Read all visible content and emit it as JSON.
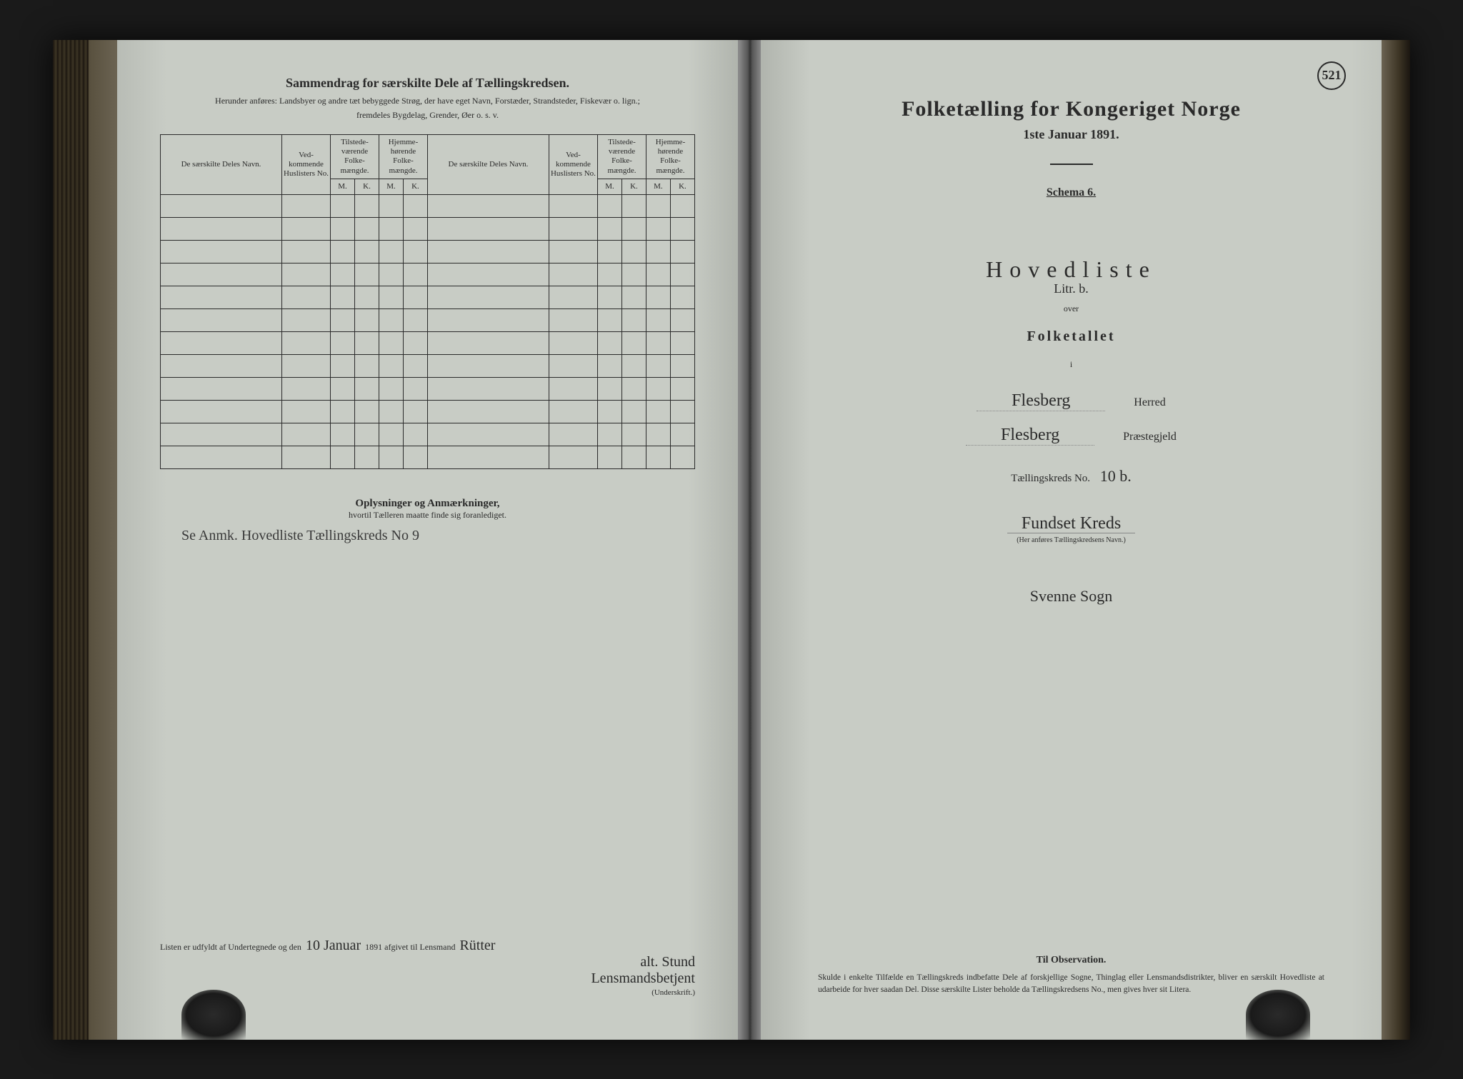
{
  "page_number": "521",
  "left": {
    "title": "Sammendrag for særskilte Dele af Tællingskredsen.",
    "subtitle1": "Herunder anføres: Landsbyer og andre tæt bebyggede Strøg, der have eget Navn, Forstæder, Strandsteder, Fiskevær o. lign.;",
    "subtitle2": "fremdeles Bygdelag, Grender, Øer o. s. v.",
    "headers": {
      "name": "De særskilte Deles Navn.",
      "no": "Ved-kommende Huslisters No.",
      "tilstede": "Tilstede-værende Folke-mængde.",
      "hjemme": "Hjemme-hørende Folke-mængde.",
      "m": "M.",
      "k": "K."
    },
    "row_count": 12,
    "oplys_title": "Oplysninger og Anmærkninger,",
    "oplys_sub": "hvortil Tælleren maatte finde sig foranlediget.",
    "oplys_note": "Se Anmk. Hovedliste Tællingskreds No 9",
    "sign_prefix": "Listen er udfyldt af Undertegnede og den",
    "sign_date": "10 Januar",
    "sign_year": "1891 afgivet til Lensmand",
    "sign_name": "Rütter",
    "sign_name2": "alt. Stund",
    "sign_role": "Lensmandsbetjent",
    "sign_under": "(Underskrift.)"
  },
  "right": {
    "title": "Folketælling for Kongeriget Norge",
    "subtitle": "1ste Januar 1891.",
    "schema": "Schema 6.",
    "hoved": "Hovedliste",
    "hoved_hand": "Litr. b.",
    "over": "over",
    "folketallet": "Folketallet",
    "i": "i",
    "herred_hand": "Flesberg",
    "herred_label": "Herred",
    "praeste_hand": "Flesberg",
    "praeste_label": "Præstegjeld",
    "kreds_label": "Tællingskreds No.",
    "kreds_no": "10 b.",
    "kreds_name": "Fundset Kreds",
    "kreds_note": "(Her anføres Tællingskredsens Navn.)",
    "sogn": "Svenne Sogn",
    "obs_title": "Til Observation.",
    "obs_text": "Skulde i enkelte Tilfælde en Tællingskreds indbefatte Dele af forskjellige Sogne, Thinglag eller Lensmandsdistrikter, bliver en særskilt Hovedliste at udarbeide for hver saadan Del. Disse særskilte Lister beholde da Tællingskredsens No., men gives hver sit Litera."
  },
  "colors": {
    "paper": "#c8ccc5",
    "ink": "#2a2a2a",
    "background": "#1a1a1a"
  }
}
